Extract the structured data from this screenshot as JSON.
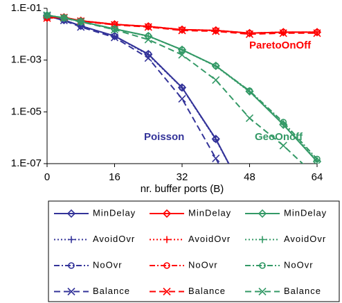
{
  "chart_data": {
    "type": "line",
    "x_label": "nr. buffer ports (B)",
    "x": [
      0,
      4,
      8,
      16,
      24,
      32,
      40,
      48,
      56,
      64
    ],
    "xlim": [
      0,
      64
    ],
    "xticks": [
      0,
      16,
      32,
      48,
      64
    ],
    "ylim": [
      1e-07,
      0.1
    ],
    "yscale": "log",
    "yticks": [
      {
        "value": 0.1,
        "label": "1.E-01"
      },
      {
        "value": 0.001,
        "label": "1.E-03"
      },
      {
        "value": 1e-05,
        "label": "1.E-05"
      },
      {
        "value": 1e-07,
        "label": "1.E-07"
      }
    ],
    "annotations": [
      "ParetoOnOff",
      "Poisson",
      "GeoOnoff"
    ],
    "series": [
      {
        "name": "MinDelay",
        "color": "#333399",
        "dash": "solid",
        "marker": "diamond",
        "values": [
          0.05,
          0.035,
          0.021,
          0.0085,
          0.0017,
          8.7e-05,
          9e-07,
          3e-09,
          null,
          null
        ]
      },
      {
        "name": "AvoidOvr",
        "color": "#333399",
        "dash": "dotted",
        "marker": "plus",
        "values": [
          0.05,
          0.035,
          0.021,
          0.0084,
          0.0016,
          8.5e-05,
          8.5e-07,
          3e-09,
          null,
          null
        ]
      },
      {
        "name": "NoOvr",
        "color": "#333399",
        "dash": "dashdot",
        "marker": "circle",
        "values": [
          0.05,
          0.035,
          0.021,
          0.0085,
          0.0017,
          8.6e-05,
          8.8e-07,
          3e-09,
          null,
          null
        ]
      },
      {
        "name": "Balance",
        "color": "#333399",
        "dash": "dashed",
        "marker": "x",
        "values": [
          0.05,
          0.034,
          0.019,
          0.0075,
          0.0012,
          3.2e-05,
          1.6e-07,
          5e-10,
          null,
          null
        ]
      },
      {
        "name": "MinDelay",
        "color": "#ff0000",
        "dash": "solid",
        "marker": "diamond",
        "values": [
          0.043,
          0.045,
          0.033,
          0.024,
          0.02,
          0.015,
          0.014,
          0.011,
          0.012,
          0.012
        ]
      },
      {
        "name": "AvoidOvr",
        "color": "#ff0000",
        "dash": "dotted",
        "marker": "plus",
        "values": [
          0.043,
          0.045,
          0.033,
          0.024,
          0.02,
          0.015,
          0.014,
          0.011,
          0.012,
          0.012
        ]
      },
      {
        "name": "NoOvr",
        "color": "#ff0000",
        "dash": "dashdot",
        "marker": "circle",
        "values": [
          0.043,
          0.045,
          0.033,
          0.024,
          0.02,
          0.015,
          0.014,
          0.011,
          0.012,
          0.012
        ]
      },
      {
        "name": "Balance",
        "color": "#ff0000",
        "dash": "dashed",
        "marker": "x",
        "values": [
          0.042,
          0.044,
          0.032,
          0.023,
          0.019,
          0.014,
          0.013,
          0.01,
          0.011,
          0.011
        ]
      },
      {
        "name": "MinDelay",
        "color": "#339966",
        "dash": "solid",
        "marker": "diamond",
        "values": [
          0.054,
          0.043,
          0.031,
          0.016,
          0.0085,
          0.0025,
          0.0006,
          6.2e-05,
          3.2e-06,
          1.2e-07
        ]
      },
      {
        "name": "AvoidOvr",
        "color": "#339966",
        "dash": "dotted",
        "marker": "plus",
        "values": [
          0.054,
          0.043,
          0.031,
          0.016,
          0.0084,
          0.0025,
          0.00058,
          6e-05,
          3.5e-06,
          1.3e-07
        ]
      },
      {
        "name": "NoOvr",
        "color": "#339966",
        "dash": "dashdot",
        "marker": "circle",
        "values": [
          0.054,
          0.043,
          0.031,
          0.016,
          0.0085,
          0.0025,
          0.0006,
          6.5e-05,
          4e-06,
          1.5e-07
        ]
      },
      {
        "name": "Balance",
        "color": "#339966",
        "dash": "dashed",
        "marker": "x",
        "values": [
          0.054,
          0.042,
          0.03,
          0.015,
          0.0062,
          0.0016,
          0.00017,
          5.7e-06,
          5e-07,
          3e-08
        ]
      }
    ]
  }
}
